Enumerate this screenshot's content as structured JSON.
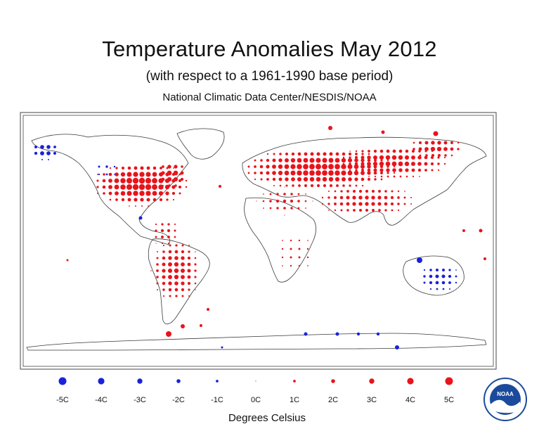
{
  "header": {
    "title": "Temperature Anomalies May 2012",
    "subtitle": "(with respect to a 1961-1990 base period)",
    "source": "National Climatic Data Center/NESDIS/NOAA"
  },
  "legend": {
    "items": [
      {
        "label": "-5C",
        "value": -5
      },
      {
        "label": "-4C",
        "value": -4
      },
      {
        "label": "-3C",
        "value": -3
      },
      {
        "label": "-2C",
        "value": -2
      },
      {
        "label": "-1C",
        "value": -1
      },
      {
        "label": "0C",
        "value": 0
      },
      {
        "label": "1C",
        "value": 1
      },
      {
        "label": "2C",
        "value": 2
      },
      {
        "label": "3C",
        "value": 3
      },
      {
        "label": "4C",
        "value": 4
      },
      {
        "label": "5C",
        "value": 5
      }
    ],
    "units": "Degrees Celsius"
  },
  "colors": {
    "warm": "#e8141b",
    "cold": "#1a22d8",
    "land_outline": "#333333"
  },
  "logo": {
    "name": "noaa-logo",
    "text": "NOAA"
  }
}
